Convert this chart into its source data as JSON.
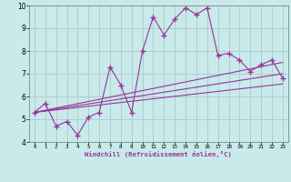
{
  "xlabel": "Windchill (Refroidissement éolien,°C)",
  "ylabel": "",
  "xlim": [
    -0.5,
    23.5
  ],
  "ylim": [
    4,
    10
  ],
  "xticks": [
    0,
    1,
    2,
    3,
    4,
    5,
    6,
    7,
    8,
    9,
    10,
    11,
    12,
    13,
    14,
    15,
    16,
    17,
    18,
    19,
    20,
    21,
    22,
    23
  ],
  "yticks": [
    4,
    5,
    6,
    7,
    8,
    9,
    10
  ],
  "background_color": "#c8eaea",
  "grid_color": "#b0c8c8",
  "line_color": "#993399",
  "line1_x": [
    0,
    1,
    2,
    3,
    4,
    5,
    6,
    7,
    8,
    9,
    10,
    11,
    12,
    13,
    14,
    15,
    16,
    17,
    18,
    19,
    20,
    21,
    22,
    23
  ],
  "line1_y": [
    5.3,
    5.7,
    4.7,
    4.9,
    4.3,
    5.1,
    5.3,
    7.3,
    6.5,
    5.3,
    8.0,
    9.5,
    8.7,
    9.4,
    9.9,
    9.6,
    9.9,
    7.8,
    7.9,
    7.6,
    7.1,
    7.4,
    7.6,
    6.8
  ],
  "line2_x": [
    0,
    23
  ],
  "line2_y": [
    5.3,
    7.5
  ],
  "line3_x": [
    0,
    23
  ],
  "line3_y": [
    5.3,
    7.0
  ],
  "line4_x": [
    0,
    23
  ],
  "line4_y": [
    5.3,
    6.55
  ]
}
